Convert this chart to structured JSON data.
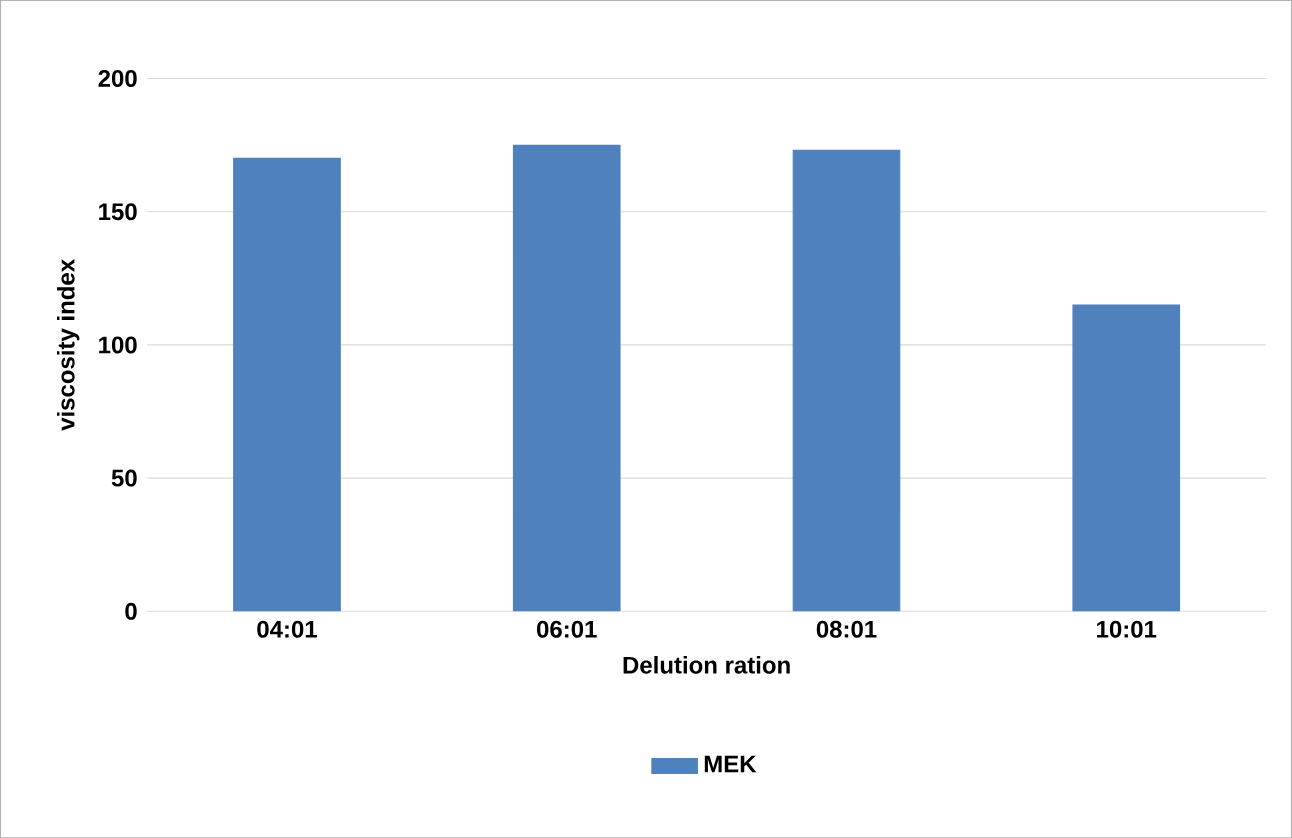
{
  "chart_data": {
    "type": "bar",
    "xlabel": "Delution ration",
    "ylabel": "viscosity index",
    "categories": [
      "04:01",
      "06:01",
      "08:01",
      "10:01"
    ],
    "series": [
      {
        "name": "MEK",
        "color": "#4f81bd",
        "values": [
          170,
          175,
          173,
          115
        ]
      }
    ],
    "ylim": [
      0,
      200
    ],
    "yticks": [
      0,
      50,
      100,
      150,
      200
    ],
    "grid": "y",
    "legend": "bottom"
  }
}
